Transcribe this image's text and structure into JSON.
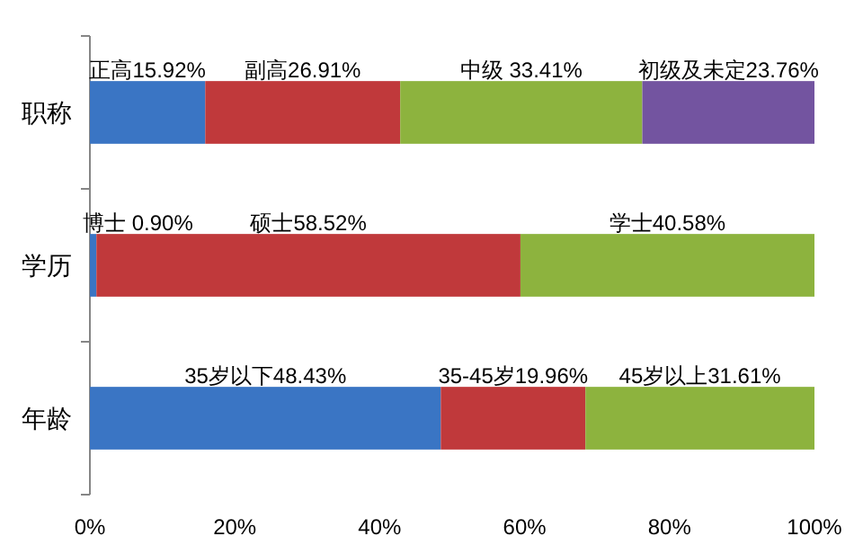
{
  "chart_data": {
    "type": "bar",
    "orientation": "horizontal",
    "stacked": true,
    "categories": [
      "职称",
      "学历",
      "年龄"
    ],
    "series": [
      {
        "color": "#3a75c4",
        "values": [
          15.92,
          0.9,
          48.43
        ],
        "value_labels": [
          "正高15.92%",
          "博士 0.90%",
          "35岁以下48.43%"
        ]
      },
      {
        "color": "#c0393b",
        "values": [
          26.91,
          58.52,
          19.96
        ],
        "value_labels": [
          "副高26.91%",
          "硕士58.52%",
          "35-45岁19.96%"
        ]
      },
      {
        "color": "#8db33e",
        "values": [
          33.41,
          40.58,
          31.61
        ],
        "value_labels": [
          "中级 33.41%",
          "学士40.58%",
          "45岁以上31.61%"
        ]
      },
      {
        "color": "#7354a0",
        "values": [
          23.76,
          null,
          null
        ],
        "value_labels": [
          "初级及未定23.76%",
          null,
          null
        ]
      }
    ],
    "xlim": [
      0,
      100
    ],
    "xticks": [
      {
        "value": 0,
        "label": "0%"
      },
      {
        "value": 20,
        "label": "20%"
      },
      {
        "value": 40,
        "label": "40%"
      },
      {
        "value": 60,
        "label": "60%"
      },
      {
        "value": 80,
        "label": "80%"
      },
      {
        "value": 100,
        "label": "100%"
      }
    ],
    "grid": false
  }
}
